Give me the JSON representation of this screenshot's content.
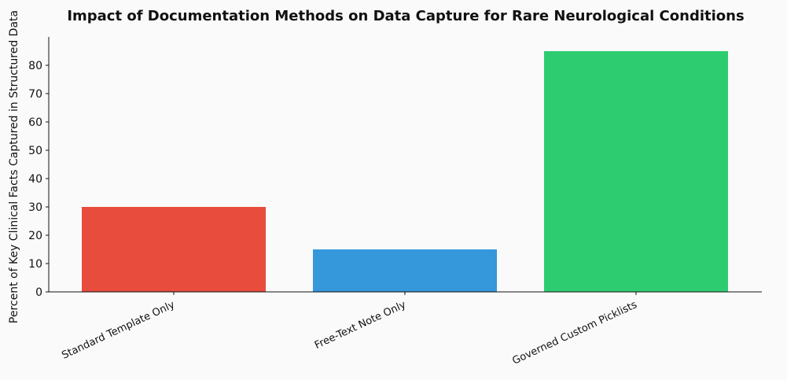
{
  "chart_data": {
    "type": "bar",
    "title": "Impact of Documentation Methods on Data Capture for Rare Neurological Conditions",
    "xlabel": "",
    "ylabel": "Percent of Key Clinical Facts Captured in Structured Data",
    "categories": [
      "Standard Template Only",
      "Free-Text Note Only",
      "Governed Custom Picklists"
    ],
    "values": [
      30,
      15,
      85
    ],
    "colors": [
      "#e74c3c",
      "#3498db",
      "#2ecc71"
    ],
    "ylim": [
      0,
      90
    ],
    "yticks": [
      "0",
      "10",
      "20",
      "30",
      "40",
      "50",
      "60",
      "70",
      "80"
    ],
    "grid": false,
    "legend": "none"
  }
}
